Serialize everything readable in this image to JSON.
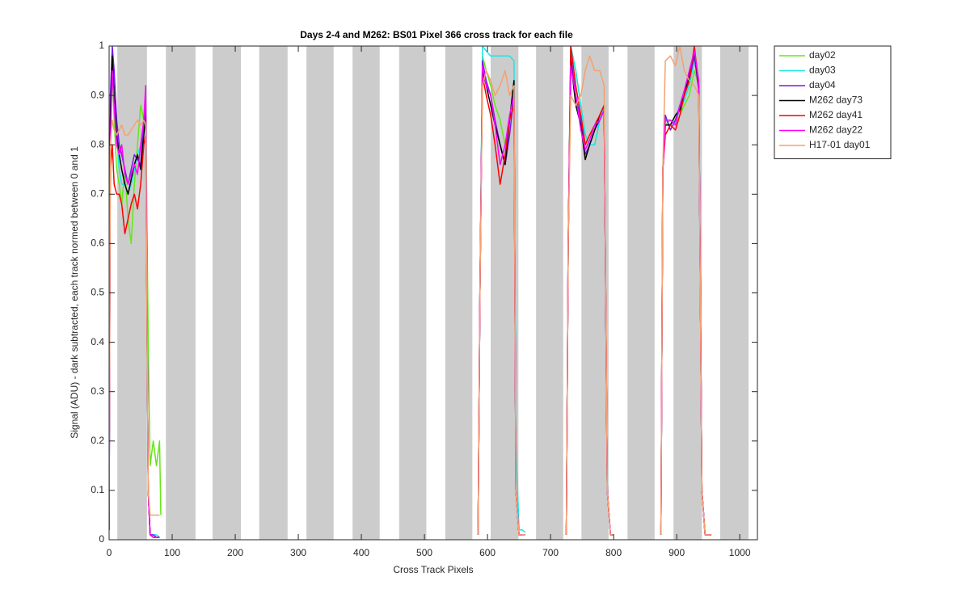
{
  "chart_data": {
    "type": "line",
    "title": "Days 2-4 and M262: BS01  Pixel 366 cross track for each file",
    "x_label": "Cross Track Pixels",
    "y_label": "Signal (ADU) - dark subtracted, each track normed between 0 and 1",
    "xlim": [
      0,
      1028
    ],
    "ylim": [
      0,
      1
    ],
    "xticks": [
      0,
      100,
      200,
      300,
      400,
      500,
      600,
      700,
      800,
      900,
      1000
    ],
    "yticks": [
      0,
      0.1,
      0.2,
      0.3,
      0.4,
      0.5,
      0.6,
      0.7,
      0.8,
      0.9,
      1
    ],
    "legend": "outside-top-right",
    "bands": [
      [
        13,
        60
      ],
      [
        90,
        137
      ],
      [
        164,
        209
      ],
      [
        238,
        283
      ],
      [
        313,
        356
      ],
      [
        386,
        429
      ],
      [
        460,
        503
      ],
      [
        533,
        576
      ],
      [
        605,
        649
      ],
      [
        677,
        720
      ],
      [
        749,
        792
      ],
      [
        822,
        865
      ],
      [
        895,
        940
      ],
      [
        969,
        1014
      ]
    ],
    "band_color": "#cccccc",
    "x": [
      0,
      2,
      5,
      8,
      12,
      16,
      20,
      25,
      30,
      35,
      40,
      45,
      50,
      55,
      58,
      62,
      65,
      70,
      75,
      80,
      82,
      300,
      585,
      588,
      592,
      598,
      605,
      612,
      620,
      628,
      635,
      642,
      645,
      650,
      655,
      660,
      690,
      725,
      728,
      732,
      740,
      748,
      755,
      762,
      770,
      778,
      785,
      790,
      795,
      800,
      840,
      875,
      878,
      882,
      890,
      898,
      905,
      912,
      920,
      928,
      935,
      940,
      945,
      950,
      955
    ],
    "series": [
      {
        "name": "day02",
        "color": "#66e619",
        "values": [
          0.05,
          0.9,
          0.95,
          0.85,
          0.75,
          0.72,
          0.68,
          0.75,
          0.65,
          0.6,
          0.72,
          0.8,
          0.88,
          0.85,
          0.9,
          0.4,
          0.15,
          0.2,
          0.15,
          0.2,
          0.05,
          null,
          0.01,
          0.5,
          0.98,
          0.95,
          0.92,
          0.88,
          0.85,
          0.8,
          0.85,
          0.88,
          0.1,
          0.01,
          0.01,
          0.01,
          null,
          0.01,
          0.6,
          1.0,
          0.95,
          0.88,
          0.82,
          0.8,
          0.8,
          0.85,
          0.88,
          0.1,
          0.01,
          0.01,
          null,
          0.01,
          0.75,
          0.84,
          0.85,
          0.84,
          0.86,
          0.88,
          0.9,
          0.95,
          0.92,
          0.1,
          0.01,
          0.01,
          0.01
        ]
      },
      {
        "name": "day03",
        "color": "#19e6e6",
        "values": [
          0.02,
          0.88,
          0.95,
          0.9,
          0.82,
          0.75,
          0.72,
          0.72,
          0.7,
          0.72,
          0.75,
          0.78,
          0.8,
          0.82,
          0.85,
          0.1,
          0.01,
          0.01,
          0.01,
          0.005,
          null,
          null,
          0.01,
          0.5,
          1.0,
          0.99,
          0.98,
          0.98,
          0.98,
          0.98,
          0.98,
          0.97,
          0.2,
          0.02,
          0.02,
          0.015,
          null,
          0.01,
          0.6,
          1.0,
          0.95,
          0.88,
          0.82,
          0.8,
          0.8,
          0.85,
          0.88,
          0.1,
          0.01,
          0.01,
          null,
          0.01,
          0.75,
          0.85,
          0.84,
          0.85,
          0.87,
          0.89,
          0.92,
          0.97,
          0.93,
          0.1,
          0.01,
          0.01,
          0.01
        ]
      },
      {
        "name": "day04",
        "color": "#7a19e6",
        "values": [
          0.02,
          0.9,
          1.0,
          0.95,
          0.85,
          0.8,
          0.78,
          0.75,
          0.72,
          0.75,
          0.78,
          0.77,
          0.76,
          0.85,
          0.88,
          0.1,
          0.01,
          0.01,
          0.005,
          0.005,
          null,
          null,
          0.01,
          0.5,
          0.97,
          0.93,
          0.9,
          0.85,
          0.8,
          0.76,
          0.82,
          0.9,
          0.1,
          0.01,
          0.01,
          0.01,
          null,
          0.01,
          0.6,
          0.98,
          0.9,
          0.85,
          0.78,
          0.8,
          0.83,
          0.85,
          0.87,
          0.1,
          0.01,
          0.01,
          null,
          0.01,
          0.75,
          0.86,
          0.83,
          0.85,
          0.88,
          0.9,
          0.93,
          0.98,
          0.91,
          0.1,
          0.01,
          0.01,
          0.01
        ]
      },
      {
        "name": "M262 day73",
        "color": "#000000",
        "values": [
          0.02,
          0.85,
          0.98,
          0.9,
          0.82,
          0.78,
          0.75,
          0.72,
          0.7,
          0.73,
          0.76,
          0.78,
          0.75,
          0.82,
          0.86,
          0.1,
          0.01,
          0.005,
          0.005,
          0.005,
          null,
          null,
          0.01,
          0.5,
          0.95,
          0.92,
          0.88,
          0.84,
          0.8,
          0.76,
          0.85,
          0.93,
          0.1,
          0.01,
          0.01,
          null,
          null,
          0.01,
          0.6,
          0.97,
          0.88,
          0.84,
          0.77,
          0.8,
          0.83,
          0.86,
          0.88,
          0.1,
          0.01,
          0.01,
          null,
          0.01,
          0.75,
          0.84,
          0.84,
          0.86,
          0.87,
          0.9,
          0.94,
          0.99,
          0.92,
          0.1,
          0.01,
          0.01,
          0.01
        ]
      },
      {
        "name": "M262 day41",
        "color": "#ff0000",
        "values": [
          0.55,
          0.75,
          0.8,
          0.72,
          0.7,
          0.7,
          0.68,
          0.62,
          0.65,
          0.68,
          0.7,
          0.67,
          0.72,
          0.8,
          0.82,
          0.1,
          0.01,
          0.005,
          0.005,
          0.005,
          null,
          null,
          0.01,
          0.5,
          0.94,
          0.9,
          0.86,
          0.8,
          0.72,
          0.78,
          0.85,
          0.88,
          0.1,
          0.01,
          0.01,
          null,
          null,
          0.01,
          0.6,
          1.0,
          0.92,
          0.86,
          0.8,
          0.82,
          0.84,
          0.86,
          0.88,
          0.1,
          0.01,
          0.01,
          null,
          0.01,
          0.75,
          0.82,
          0.84,
          0.83,
          0.86,
          0.9,
          0.93,
          1.0,
          0.92,
          0.1,
          0.01,
          0.01,
          0.01
        ]
      },
      {
        "name": "M262 day22",
        "color": "#ff00ff",
        "values": [
          0.02,
          0.8,
          0.95,
          0.88,
          0.8,
          0.78,
          0.8,
          0.74,
          0.72,
          0.74,
          0.76,
          0.74,
          0.8,
          0.85,
          0.92,
          0.1,
          0.01,
          0.005,
          0.005,
          0.005,
          null,
          null,
          0.01,
          0.5,
          0.96,
          0.92,
          0.9,
          0.84,
          0.76,
          0.8,
          0.86,
          0.9,
          0.1,
          0.01,
          0.01,
          0.01,
          null,
          0.01,
          0.6,
          0.96,
          0.9,
          0.83,
          0.79,
          0.81,
          0.84,
          0.85,
          0.87,
          0.1,
          0.01,
          0.01,
          null,
          0.01,
          0.75,
          0.85,
          0.85,
          0.84,
          0.88,
          0.91,
          0.95,
          0.99,
          0.93,
          0.1,
          0.01,
          0.01,
          0.01
        ]
      },
      {
        "name": "H17-01 day01",
        "color": "#f5a070",
        "values": [
          0.02,
          0.8,
          0.85,
          0.83,
          0.82,
          0.83,
          0.84,
          0.82,
          0.82,
          0.83,
          0.84,
          0.85,
          0.84,
          0.85,
          0.84,
          0.1,
          0.05,
          0.05,
          0.05,
          0.05,
          null,
          null,
          0.01,
          0.5,
          0.92,
          0.95,
          0.93,
          0.9,
          0.92,
          0.95,
          0.9,
          0.92,
          0.1,
          0.01,
          0.01,
          0.01,
          null,
          0.01,
          0.6,
          0.9,
          0.88,
          0.9,
          0.95,
          0.98,
          0.95,
          0.95,
          0.92,
          0.1,
          0.01,
          0.01,
          null,
          0.01,
          0.75,
          0.97,
          0.98,
          0.96,
          1.0,
          0.95,
          0.93,
          0.92,
          0.9,
          0.1,
          0.01,
          0.01,
          0.01
        ]
      }
    ]
  }
}
